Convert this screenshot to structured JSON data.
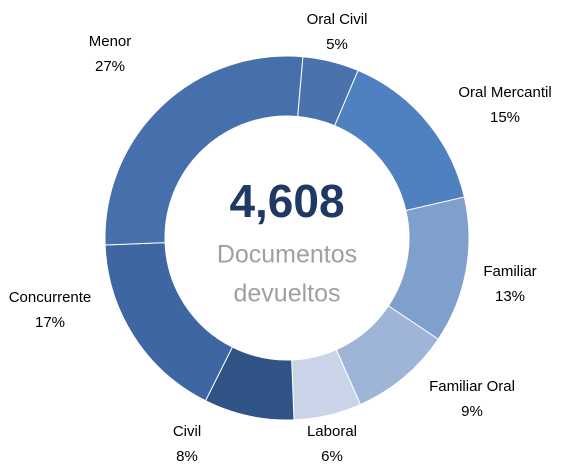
{
  "chart_data": {
    "type": "donut",
    "center_value": "4,608",
    "center_text": [
      "Documentos",
      "devueltos"
    ],
    "categories": [
      "Oral Civil",
      "Oral Mercantil",
      "Familiar",
      "Familiar Oral",
      "Laboral",
      "Civil",
      "Concurrente",
      "Menor"
    ],
    "values": [
      5,
      15,
      13,
      9,
      6,
      8,
      17,
      27
    ],
    "value_labels": [
      "5%",
      "15%",
      "13%",
      "9%",
      "6%",
      "8%",
      "17%",
      "27%"
    ],
    "colors": [
      "#4a73ae",
      "#4f81c0",
      "#7f9fcc",
      "#9fb5d8",
      "#c9d4e9",
      "#2f5485",
      "#3d66a2",
      "#4670ab"
    ]
  }
}
